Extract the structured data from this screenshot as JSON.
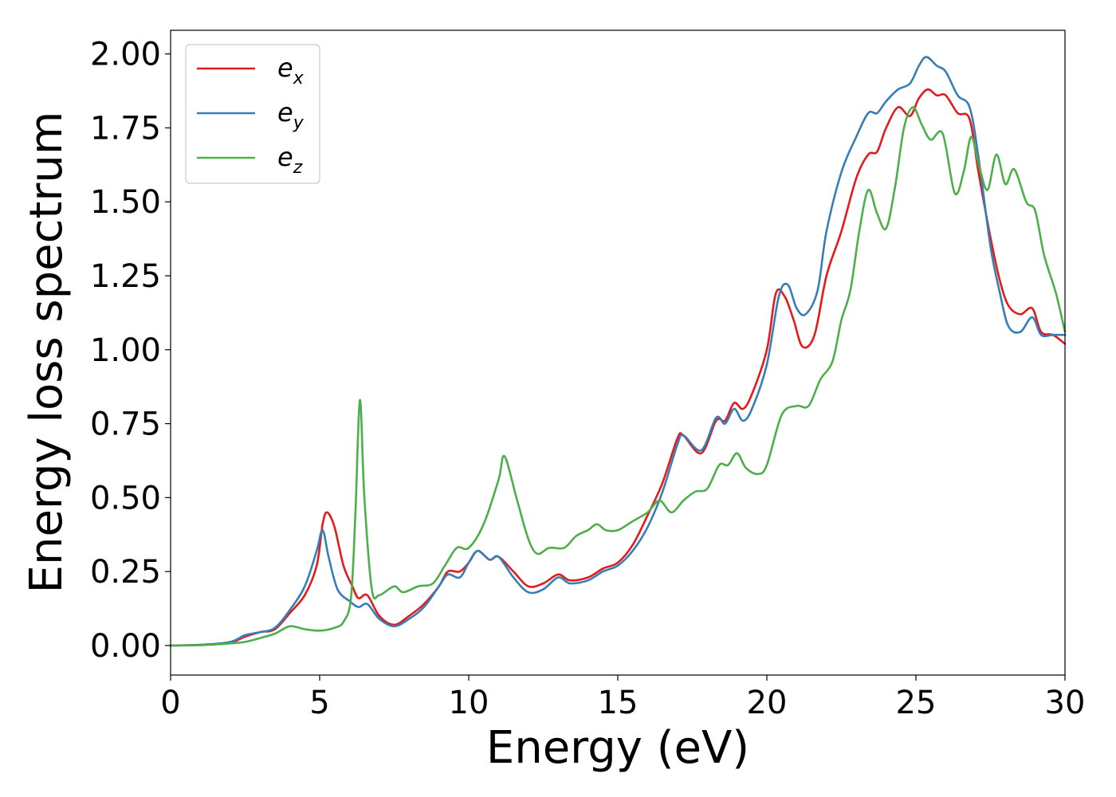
{
  "chart_data": {
    "type": "line",
    "xlabel": "Energy (eV)",
    "ylabel": "Energy loss spectrum",
    "xlim": [
      0,
      30
    ],
    "ylim": [
      -0.1,
      2.08
    ],
    "xticks": [
      0,
      5,
      10,
      15,
      20,
      25,
      30
    ],
    "xtick_labels": [
      "0",
      "5",
      "10",
      "15",
      "20",
      "25",
      "30"
    ],
    "yticks": [
      0.0,
      0.25,
      0.5,
      0.75,
      1.0,
      1.25,
      1.5,
      1.75,
      2.0
    ],
    "ytick_labels": [
      "0.00",
      "0.25",
      "0.50",
      "0.75",
      "1.00",
      "1.25",
      "1.50",
      "1.75",
      "2.00"
    ],
    "grid": false,
    "legend_position": "top-left",
    "series": [
      {
        "name": "e",
        "sub": "x",
        "color": "#e41a1c",
        "points": [
          [
            0,
            0
          ],
          [
            1,
            0.002
          ],
          [
            2,
            0.01
          ],
          [
            2.5,
            0.03
          ],
          [
            3,
            0.045
          ],
          [
            3.5,
            0.055
          ],
          [
            4,
            0.11
          ],
          [
            4.5,
            0.17
          ],
          [
            4.9,
            0.27
          ],
          [
            5.1,
            0.41
          ],
          [
            5.25,
            0.45
          ],
          [
            5.5,
            0.4
          ],
          [
            5.8,
            0.27
          ],
          [
            6.1,
            0.2
          ],
          [
            6.3,
            0.16
          ],
          [
            6.6,
            0.17
          ],
          [
            7,
            0.1
          ],
          [
            7.5,
            0.07
          ],
          [
            8,
            0.1
          ],
          [
            8.5,
            0.14
          ],
          [
            9,
            0.2
          ],
          [
            9.3,
            0.25
          ],
          [
            9.7,
            0.25
          ],
          [
            10,
            0.28
          ],
          [
            10.3,
            0.32
          ],
          [
            10.7,
            0.29
          ],
          [
            11,
            0.3
          ],
          [
            11.5,
            0.25
          ],
          [
            12,
            0.2
          ],
          [
            12.5,
            0.21
          ],
          [
            13,
            0.24
          ],
          [
            13.4,
            0.22
          ],
          [
            14,
            0.23
          ],
          [
            14.5,
            0.26
          ],
          [
            15,
            0.28
          ],
          [
            15.5,
            0.34
          ],
          [
            16,
            0.44
          ],
          [
            16.5,
            0.55
          ],
          [
            17,
            0.7
          ],
          [
            17.2,
            0.71
          ],
          [
            17.8,
            0.65
          ],
          [
            18.3,
            0.76
          ],
          [
            18.6,
            0.76
          ],
          [
            18.9,
            0.82
          ],
          [
            19.2,
            0.8
          ],
          [
            19.5,
            0.85
          ],
          [
            20,
            1.0
          ],
          [
            20.3,
            1.19
          ],
          [
            20.6,
            1.18
          ],
          [
            20.9,
            1.1
          ],
          [
            21.2,
            1.01
          ],
          [
            21.6,
            1.05
          ],
          [
            22,
            1.25
          ],
          [
            22.5,
            1.4
          ],
          [
            23,
            1.58
          ],
          [
            23.4,
            1.66
          ],
          [
            23.7,
            1.67
          ],
          [
            24,
            1.75
          ],
          [
            24.4,
            1.82
          ],
          [
            24.8,
            1.79
          ],
          [
            25.1,
            1.85
          ],
          [
            25.4,
            1.88
          ],
          [
            25.7,
            1.86
          ],
          [
            26,
            1.86
          ],
          [
            26.4,
            1.8
          ],
          [
            26.8,
            1.78
          ],
          [
            27.1,
            1.6
          ],
          [
            27.5,
            1.38
          ],
          [
            27.8,
            1.24
          ],
          [
            28.1,
            1.15
          ],
          [
            28.5,
            1.12
          ],
          [
            28.9,
            1.14
          ],
          [
            29.2,
            1.06
          ],
          [
            29.6,
            1.05
          ],
          [
            30,
            1.02
          ]
        ]
      },
      {
        "name": "e",
        "sub": "y",
        "color": "#377eb8",
        "points": [
          [
            0,
            0
          ],
          [
            1,
            0.002
          ],
          [
            2,
            0.012
          ],
          [
            2.5,
            0.035
          ],
          [
            3,
            0.045
          ],
          [
            3.5,
            0.06
          ],
          [
            4,
            0.12
          ],
          [
            4.5,
            0.2
          ],
          [
            4.9,
            0.32
          ],
          [
            5.1,
            0.39
          ],
          [
            5.3,
            0.3
          ],
          [
            5.6,
            0.19
          ],
          [
            6,
            0.15
          ],
          [
            6.3,
            0.13
          ],
          [
            6.6,
            0.14
          ],
          [
            7,
            0.09
          ],
          [
            7.5,
            0.065
          ],
          [
            8,
            0.09
          ],
          [
            8.5,
            0.13
          ],
          [
            9,
            0.2
          ],
          [
            9.3,
            0.24
          ],
          [
            9.7,
            0.23
          ],
          [
            10,
            0.28
          ],
          [
            10.3,
            0.32
          ],
          [
            10.7,
            0.29
          ],
          [
            11,
            0.3
          ],
          [
            11.5,
            0.23
          ],
          [
            12,
            0.18
          ],
          [
            12.5,
            0.19
          ],
          [
            13,
            0.23
          ],
          [
            13.4,
            0.21
          ],
          [
            14,
            0.22
          ],
          [
            14.5,
            0.25
          ],
          [
            15,
            0.27
          ],
          [
            15.5,
            0.32
          ],
          [
            16,
            0.4
          ],
          [
            16.5,
            0.52
          ],
          [
            17,
            0.68
          ],
          [
            17.2,
            0.71
          ],
          [
            17.8,
            0.66
          ],
          [
            18.3,
            0.77
          ],
          [
            18.6,
            0.75
          ],
          [
            18.9,
            0.8
          ],
          [
            19.2,
            0.76
          ],
          [
            19.5,
            0.8
          ],
          [
            20,
            0.95
          ],
          [
            20.4,
            1.18
          ],
          [
            20.7,
            1.22
          ],
          [
            21,
            1.14
          ],
          [
            21.3,
            1.12
          ],
          [
            21.7,
            1.2
          ],
          [
            22,
            1.4
          ],
          [
            22.5,
            1.6
          ],
          [
            23,
            1.72
          ],
          [
            23.4,
            1.8
          ],
          [
            23.7,
            1.8
          ],
          [
            24,
            1.84
          ],
          [
            24.4,
            1.88
          ],
          [
            24.8,
            1.9
          ],
          [
            25.1,
            1.96
          ],
          [
            25.35,
            1.99
          ],
          [
            25.7,
            1.96
          ],
          [
            26,
            1.94
          ],
          [
            26.4,
            1.86
          ],
          [
            26.8,
            1.82
          ],
          [
            27.1,
            1.65
          ],
          [
            27.5,
            1.35
          ],
          [
            27.8,
            1.2
          ],
          [
            28.1,
            1.08
          ],
          [
            28.5,
            1.06
          ],
          [
            28.9,
            1.11
          ],
          [
            29.2,
            1.05
          ],
          [
            29.6,
            1.05
          ],
          [
            30,
            1.05
          ]
        ]
      },
      {
        "name": "e",
        "sub": "z",
        "color": "#4daf4a",
        "points": [
          [
            0,
            0
          ],
          [
            1,
            0.001
          ],
          [
            2,
            0.007
          ],
          [
            2.5,
            0.012
          ],
          [
            3,
            0.025
          ],
          [
            3.5,
            0.04
          ],
          [
            4,
            0.065
          ],
          [
            4.5,
            0.055
          ],
          [
            5,
            0.05
          ],
          [
            5.5,
            0.06
          ],
          [
            5.8,
            0.08
          ],
          [
            6.05,
            0.16
          ],
          [
            6.2,
            0.45
          ],
          [
            6.35,
            0.83
          ],
          [
            6.5,
            0.5
          ],
          [
            6.75,
            0.19
          ],
          [
            7,
            0.17
          ],
          [
            7.5,
            0.2
          ],
          [
            7.8,
            0.18
          ],
          [
            8.3,
            0.2
          ],
          [
            8.8,
            0.21
          ],
          [
            9.2,
            0.27
          ],
          [
            9.6,
            0.33
          ],
          [
            10,
            0.33
          ],
          [
            10.5,
            0.41
          ],
          [
            11,
            0.56
          ],
          [
            11.2,
            0.64
          ],
          [
            11.6,
            0.5
          ],
          [
            12,
            0.36
          ],
          [
            12.3,
            0.31
          ],
          [
            12.7,
            0.33
          ],
          [
            13.2,
            0.33
          ],
          [
            13.6,
            0.37
          ],
          [
            14,
            0.39
          ],
          [
            14.3,
            0.41
          ],
          [
            14.6,
            0.39
          ],
          [
            15,
            0.39
          ],
          [
            15.5,
            0.42
          ],
          [
            16,
            0.45
          ],
          [
            16.4,
            0.49
          ],
          [
            16.8,
            0.45
          ],
          [
            17.2,
            0.49
          ],
          [
            17.6,
            0.52
          ],
          [
            18,
            0.53
          ],
          [
            18.4,
            0.61
          ],
          [
            18.7,
            0.61
          ],
          [
            19,
            0.65
          ],
          [
            19.3,
            0.6
          ],
          [
            19.7,
            0.58
          ],
          [
            20,
            0.61
          ],
          [
            20.5,
            0.78
          ],
          [
            21,
            0.81
          ],
          [
            21.4,
            0.81
          ],
          [
            21.8,
            0.9
          ],
          [
            22.2,
            0.96
          ],
          [
            22.5,
            1.1
          ],
          [
            22.8,
            1.2
          ],
          [
            23.1,
            1.4
          ],
          [
            23.4,
            1.54
          ],
          [
            23.7,
            1.46
          ],
          [
            24,
            1.41
          ],
          [
            24.3,
            1.55
          ],
          [
            24.6,
            1.75
          ],
          [
            24.9,
            1.82
          ],
          [
            25.2,
            1.76
          ],
          [
            25.5,
            1.71
          ],
          [
            25.9,
            1.73
          ],
          [
            26.3,
            1.53
          ],
          [
            26.6,
            1.6
          ],
          [
            26.85,
            1.72
          ],
          [
            27.1,
            1.63
          ],
          [
            27.4,
            1.54
          ],
          [
            27.7,
            1.66
          ],
          [
            28,
            1.56
          ],
          [
            28.3,
            1.61
          ],
          [
            28.7,
            1.5
          ],
          [
            29,
            1.47
          ],
          [
            29.3,
            1.32
          ],
          [
            29.7,
            1.19
          ],
          [
            30,
            1.06
          ]
        ]
      }
    ]
  }
}
